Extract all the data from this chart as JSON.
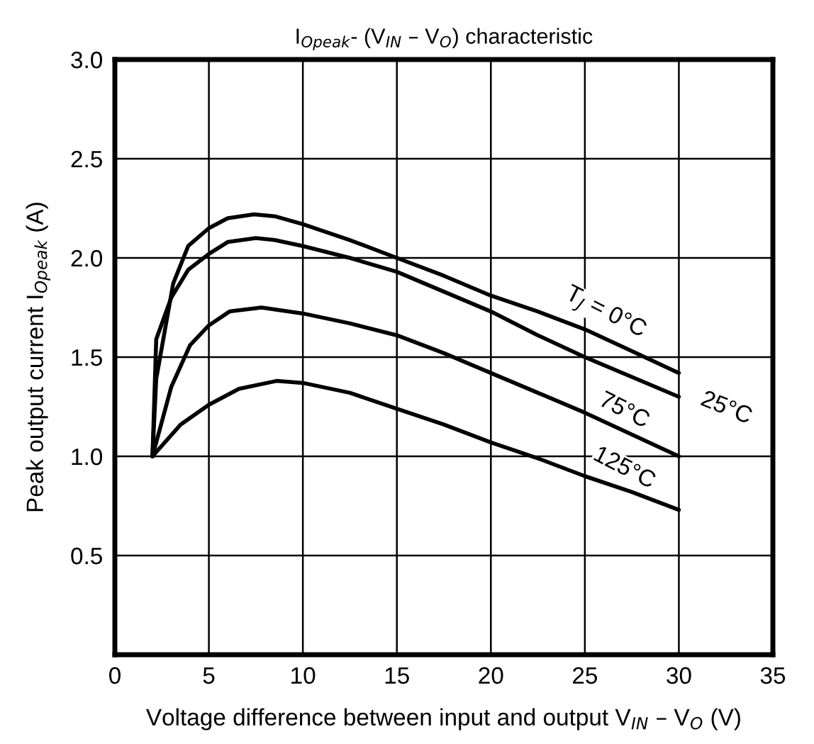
{
  "chart_data": {
    "type": "line",
    "title": "I$_{Opeak}$- (V$_{IN}$ – V$_{O}$) characteristic",
    "xlabel": "Voltage difference between input and output V$_{IN}$ – V$_{O}$ (V)",
    "ylabel": "Peak output current I$_{Opeak}$ (A)",
    "series": [
      {
        "color": "#000000",
        "x": [
          2,
          2.2,
          3.1,
          3.9,
          5,
          6,
          7.4,
          8.5,
          10,
          12.5,
          15,
          17.5,
          20,
          22.5,
          25,
          27.5,
          30
        ],
        "values": [
          1.0,
          1.39,
          1.87,
          2.06,
          2.15,
          2.2,
          2.22,
          2.21,
          2.17,
          2.09,
          2.0,
          1.91,
          1.81,
          1.73,
          1.64,
          1.53,
          1.42
        ]
      },
      {
        "color": "#000000",
        "x": [
          2,
          2.2,
          3,
          3.9,
          5,
          6,
          7.5,
          8.5,
          10,
          12.5,
          15,
          17.5,
          20,
          22.5,
          25,
          27.5,
          30
        ],
        "values": [
          1.0,
          1.59,
          1.8,
          1.94,
          2.02,
          2.08,
          2.1,
          2.09,
          2.06,
          2.0,
          1.93,
          1.83,
          1.73,
          1.61,
          1.5,
          1.4,
          1.3
        ]
      },
      {
        "color": "#000000",
        "x": [
          2,
          3,
          4,
          5,
          6.1,
          7.8,
          10,
          12.5,
          15,
          17.5,
          20,
          22.5,
          25,
          27.5,
          30
        ],
        "values": [
          1.0,
          1.35,
          1.56,
          1.66,
          1.73,
          1.75,
          1.72,
          1.67,
          1.61,
          1.52,
          1.42,
          1.32,
          1.22,
          1.11,
          1.0
        ]
      },
      {
        "color": "#000000",
        "x": [
          2,
          3.5,
          5,
          6.6,
          8.6,
          10,
          12.5,
          15,
          17.5,
          20,
          22.5,
          25,
          27.5,
          30
        ],
        "values": [
          1.0,
          1.16,
          1.26,
          1.34,
          1.38,
          1.37,
          1.32,
          1.24,
          1.16,
          1.07,
          0.99,
          0.9,
          0.82,
          0.73
        ]
      }
    ],
    "annotations": [
      {
        "text": "T$_{J}$ = 0°C",
        "x": 26.5,
        "y": 1.58
      },
      {
        "text": "25°C",
        "x": 30,
        "y": 1.3
      },
      {
        "text": "75°C",
        "x": 27.5,
        "y": 1.11
      },
      {
        "text": "125°C",
        "x": 27.5,
        "y": 0.82
      }
    ],
    "xlim": [
      0,
      35
    ],
    "xticks": [
      0,
      5,
      10,
      15,
      20,
      25,
      30,
      35
    ],
    "ylim": [
      0,
      3.0
    ],
    "yticks": [
      0.5,
      {
        "value": 1,
        "label": "1.0"
      },
      1.5,
      {
        "value": 2,
        "label": "2.0"
      },
      2.5,
      {
        "value": 3,
        "label": "3.0"
      }
    ],
    "grid": true,
    "legend": false,
    "marker": "none",
    "line_style": "solid"
  }
}
